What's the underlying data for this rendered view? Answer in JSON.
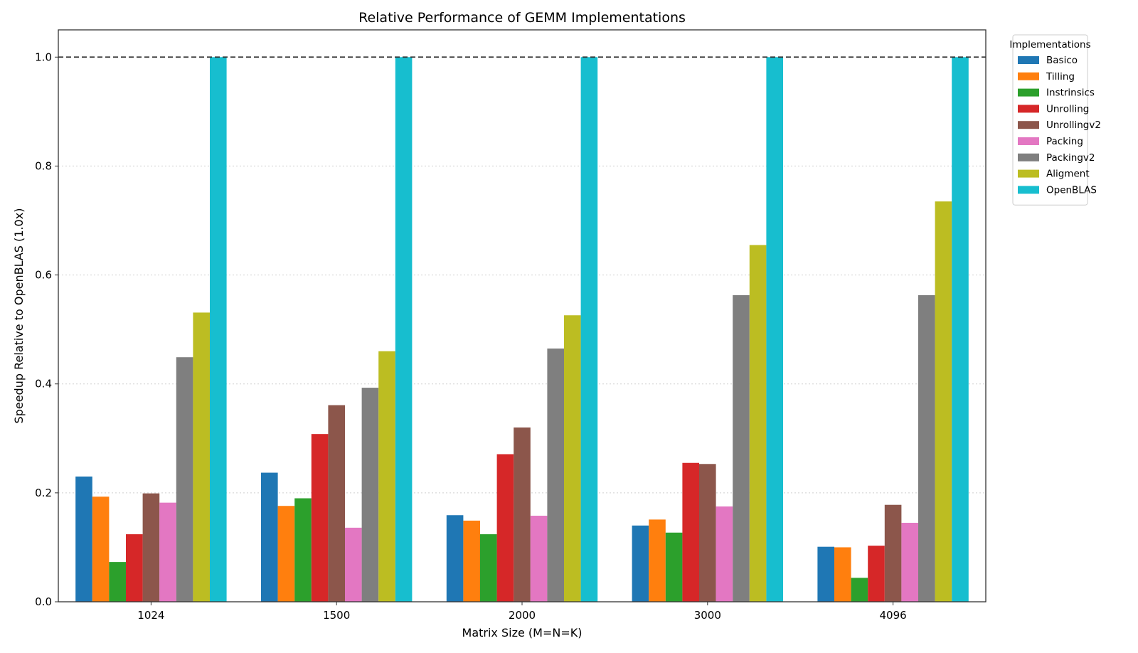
{
  "chart_data": {
    "type": "bar",
    "title": "Relative Performance of GEMM Implementations",
    "xlabel": "Matrix Size (M=N=K)",
    "ylabel": "Speedup Relative to OpenBLAS (1.0x)",
    "categories": [
      "1024",
      "1500",
      "2000",
      "3000",
      "4096"
    ],
    "ylim": [
      0,
      1.05
    ],
    "yticks": [
      0.0,
      0.2,
      0.4,
      0.6,
      0.8,
      1.0
    ],
    "ytick_labels": [
      "0.0",
      "0.2",
      "0.4",
      "0.6",
      "0.8",
      "1.0"
    ],
    "grid": "y, dotted",
    "reference_line": {
      "y": 1.0,
      "style": "dashed"
    },
    "legend": {
      "title": "Implementations",
      "placement": "outside upper right"
    },
    "series": [
      {
        "name": "Basico",
        "color": "#1f77b4",
        "values": [
          0.23,
          0.237,
          0.159,
          0.14,
          0.101
        ]
      },
      {
        "name": "Tilling",
        "color": "#ff7f0e",
        "values": [
          0.193,
          0.176,
          0.149,
          0.151,
          0.1
        ]
      },
      {
        "name": "Instrinsics",
        "color": "#2ca02c",
        "values": [
          0.073,
          0.19,
          0.124,
          0.127,
          0.044
        ]
      },
      {
        "name": "Unrolling",
        "color": "#d62728",
        "values": [
          0.124,
          0.308,
          0.271,
          0.255,
          0.103
        ]
      },
      {
        "name": "Unrollingv2",
        "color": "#8c564b",
        "values": [
          0.199,
          0.361,
          0.32,
          0.253,
          0.178
        ]
      },
      {
        "name": "Packing",
        "color": "#e377c2",
        "values": [
          0.182,
          0.136,
          0.158,
          0.175,
          0.145
        ]
      },
      {
        "name": "Packingv2",
        "color": "#7f7f7f",
        "values": [
          0.449,
          0.393,
          0.465,
          0.563,
          0.563
        ]
      },
      {
        "name": "Aligment",
        "color": "#bcbd22",
        "values": [
          0.531,
          0.46,
          0.526,
          0.655,
          0.735
        ]
      },
      {
        "name": "OpenBLAS",
        "color": "#17becf",
        "values": [
          1.0,
          1.0,
          1.0,
          1.0,
          1.0
        ]
      }
    ]
  }
}
